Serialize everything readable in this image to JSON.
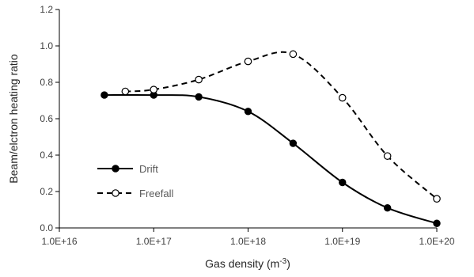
{
  "chart_data": {
    "type": "line",
    "xlabel": "Gas density (m",
    "xlabel_superscript": "-3",
    "xlabel_suffix": ")",
    "ylabel": "Beam/elctron heating ratio",
    "x_scale": "log",
    "xlim": [
      1e+16,
      1e+20
    ],
    "ylim": [
      0,
      1.2
    ],
    "x_tick_labels": [
      "1.0E+16",
      "1.0E+17",
      "1.0E+18",
      "1.0E+19",
      "1.0E+20"
    ],
    "y_tick_labels": [
      "0.0",
      "0.2",
      "0.4",
      "0.6",
      "0.8",
      "1.0",
      "1.2"
    ],
    "grid": false,
    "legend_position": "lower-left",
    "series": [
      {
        "name": "Drift",
        "line_style": "solid",
        "marker": "filled-circle",
        "color": "#000000",
        "x": [
          3e+16,
          1e+17,
          3e+17,
          1e+18,
          3e+18,
          1e+19,
          3e+19,
          1e+20
        ],
        "y": [
          0.73,
          0.73,
          0.72,
          0.64,
          0.465,
          0.25,
          0.11,
          0.025
        ]
      },
      {
        "name": "Freefall",
        "line_style": "dashed",
        "marker": "open-circle",
        "color": "#000000",
        "x": [
          5e+16,
          1e+17,
          3e+17,
          1e+18,
          3e+18,
          1e+19,
          3e+19,
          1e+20
        ],
        "y": [
          0.75,
          0.76,
          0.815,
          0.915,
          0.955,
          0.715,
          0.395,
          0.16
        ]
      }
    ]
  }
}
